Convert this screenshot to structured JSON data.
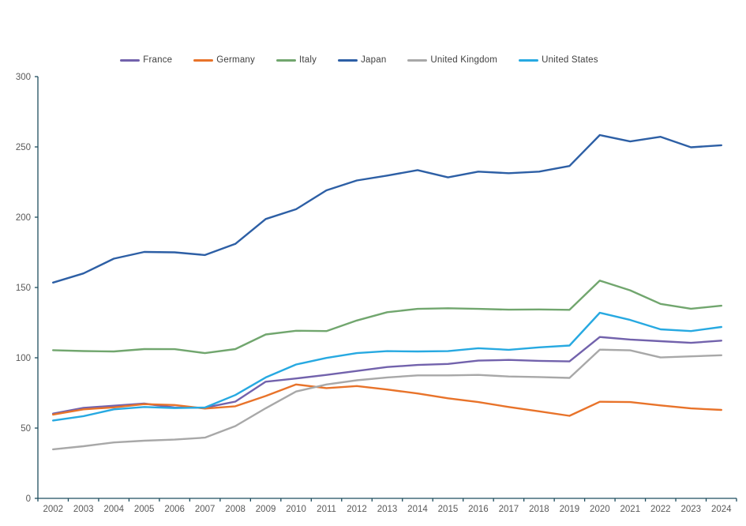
{
  "chart_data": {
    "type": "line",
    "title": "",
    "xlabel": "",
    "ylabel": "",
    "x": [
      2002,
      2003,
      2004,
      2005,
      2006,
      2007,
      2008,
      2009,
      2010,
      2011,
      2012,
      2013,
      2014,
      2015,
      2016,
      2017,
      2018,
      2019,
      2020,
      2021,
      2022,
      2023,
      2024
    ],
    "series": [
      {
        "name": "France",
        "color": "#7262ac",
        "values": [
          60.3,
          64.4,
          65.9,
          67.4,
          64.6,
          64.5,
          68.8,
          83.0,
          85.3,
          87.8,
          90.6,
          93.4,
          94.9,
          95.6,
          98.0,
          98.5,
          97.8,
          97.4,
          114.8,
          113.0,
          111.8,
          110.6,
          112.2
        ]
      },
      {
        "name": "Germany",
        "color": "#e8732a",
        "values": [
          59.6,
          63.3,
          64.7,
          67.0,
          66.4,
          63.9,
          65.5,
          72.8,
          81.0,
          78.4,
          79.9,
          77.4,
          74.6,
          71.2,
          68.5,
          65.0,
          61.9,
          58.7,
          68.7,
          68.5,
          66.1,
          64.0,
          62.9
        ]
      },
      {
        "name": "Italy",
        "color": "#71a66e",
        "values": [
          105.4,
          104.8,
          104.5,
          106.2,
          106.1,
          103.3,
          106.2,
          116.6,
          119.2,
          119.0,
          126.5,
          132.4,
          134.8,
          135.2,
          134.8,
          134.2,
          134.4,
          134.1,
          154.9,
          148.0,
          138.3,
          134.9,
          137.0
        ]
      },
      {
        "name": "Japan",
        "color": "#2d5fa5",
        "values": [
          153.5,
          160.0,
          170.5,
          175.3,
          175.0,
          173.1,
          181.0,
          198.7,
          205.7,
          219.1,
          226.1,
          229.6,
          233.5,
          228.3,
          232.4,
          231.3,
          232.4,
          236.4,
          258.4,
          253.9,
          257.2,
          249.7,
          251.2
        ]
      },
      {
        "name": "United Kingdom",
        "color": "#a8a8a8",
        "values": [
          34.9,
          37.1,
          39.8,
          41.0,
          41.8,
          43.2,
          51.4,
          64.1,
          76.0,
          81.0,
          84.0,
          86.0,
          87.5,
          87.5,
          87.8,
          86.7,
          86.3,
          85.7,
          105.8,
          105.3,
          100.2,
          101.0,
          101.8
        ]
      },
      {
        "name": "United States",
        "color": "#27a9e1",
        "values": [
          55.4,
          58.5,
          63.3,
          65.0,
          64.2,
          64.6,
          73.5,
          86.0,
          95.2,
          99.9,
          103.3,
          104.7,
          104.5,
          104.7,
          106.8,
          105.7,
          107.4,
          108.7,
          132.0,
          126.9,
          120.2,
          119.0,
          121.9
        ]
      }
    ],
    "ylim": [
      0,
      300
    ],
    "yticks": [
      0,
      50,
      100,
      150,
      200,
      250,
      300
    ],
    "grid": false,
    "legend_position": "top",
    "axis_color": "#1f4e5f",
    "tick_label_color": "#595959",
    "legend_text_color": "#404040"
  }
}
